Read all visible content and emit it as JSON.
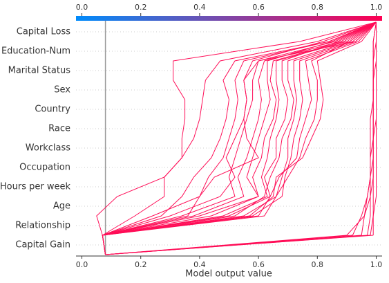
{
  "chart_data": {
    "type": "decision",
    "xlabel": "Model output value",
    "categories": [
      "Capital Loss",
      "Education-Num",
      "Marital Status",
      "Sex",
      "Country",
      "Race",
      "Workclass",
      "Occupation",
      "Hours per week",
      "Age",
      "Relationship",
      "Capital Gain"
    ],
    "base_value": 0.08,
    "xlim": [
      -0.02,
      1.02
    ],
    "xticks": [
      {
        "value": 0,
        "label": "0.0"
      },
      0.2,
      0.4,
      0.6,
      0.8,
      {
        "value": 1,
        "label": "1.0"
      }
    ],
    "line_color": "#ff0d57",
    "colorbar_colors": [
      "#008bfb",
      "#ff0052"
    ],
    "series": [
      {
        "values": [
          1.0,
          0.74,
          0.31,
          0.31,
          0.35,
          0.35,
          0.34,
          0.34,
          0.28,
          0.12,
          0.05,
          0.07
        ]
      },
      {
        "values": [
          1.0,
          0.8,
          0.47,
          0.42,
          0.41,
          0.4,
          0.38,
          0.34,
          0.28,
          0.28,
          0.18,
          0.07
        ]
      },
      {
        "values": [
          1.0,
          0.84,
          0.55,
          0.52,
          0.53,
          0.52,
          0.5,
          0.48,
          0.43,
          0.4,
          0.24,
          0.07
        ]
      },
      {
        "values": [
          1.0,
          0.82,
          0.58,
          0.55,
          0.56,
          0.55,
          0.52,
          0.49,
          0.52,
          0.47,
          0.3,
          0.07
        ]
      },
      {
        "values": [
          1.0,
          0.86,
          0.6,
          0.58,
          0.58,
          0.56,
          0.54,
          0.52,
          0.5,
          0.52,
          0.34,
          0.07
        ]
      },
      {
        "values": [
          1.0,
          0.88,
          0.62,
          0.6,
          0.61,
          0.6,
          0.58,
          0.56,
          0.53,
          0.55,
          0.38,
          0.07
        ]
      },
      {
        "values": [
          1.0,
          0.85,
          0.63,
          0.63,
          0.64,
          0.62,
          0.6,
          0.58,
          0.56,
          0.6,
          0.4,
          0.07
        ]
      },
      {
        "values": [
          1.0,
          0.89,
          0.65,
          0.64,
          0.66,
          0.65,
          0.62,
          0.61,
          0.58,
          0.6,
          0.44,
          0.07
        ]
      },
      {
        "values": [
          1.0,
          0.9,
          0.66,
          0.66,
          0.67,
          0.66,
          0.64,
          0.63,
          0.61,
          0.63,
          0.48,
          0.07
        ]
      },
      {
        "values": [
          1.0,
          0.87,
          0.68,
          0.68,
          0.7,
          0.69,
          0.66,
          0.66,
          0.62,
          0.64,
          0.5,
          0.07
        ]
      },
      {
        "values": [
          1.0,
          0.91,
          0.7,
          0.7,
          0.72,
          0.71,
          0.68,
          0.67,
          0.64,
          0.62,
          0.52,
          0.07
        ]
      },
      {
        "values": [
          1.0,
          0.92,
          0.72,
          0.72,
          0.73,
          0.72,
          0.7,
          0.7,
          0.68,
          0.66,
          0.55,
          0.07
        ]
      },
      {
        "values": [
          1.0,
          0.93,
          0.74,
          0.74,
          0.75,
          0.74,
          0.72,
          0.71,
          0.69,
          0.68,
          0.58,
          0.07
        ]
      },
      {
        "values": [
          1.0,
          0.94,
          0.76,
          0.77,
          0.78,
          0.76,
          0.74,
          0.73,
          0.67,
          0.64,
          0.6,
          0.07
        ]
      },
      {
        "values": [
          1.0,
          0.91,
          0.78,
          0.8,
          0.8,
          0.79,
          0.76,
          0.74,
          0.7,
          0.66,
          0.62,
          0.07
        ]
      },
      {
        "values": [
          1.0,
          0.95,
          0.8,
          0.81,
          0.82,
          0.81,
          0.78,
          0.75,
          0.66,
          0.65,
          0.57,
          0.07
        ]
      },
      {
        "values": [
          1.0,
          0.93,
          0.6,
          0.55,
          0.56,
          0.55,
          0.56,
          0.6,
          0.45,
          0.4,
          0.36,
          0.07
        ]
      },
      {
        "values": [
          1.0,
          0.84,
          0.52,
          0.48,
          0.5,
          0.49,
          0.47,
          0.44,
          0.38,
          0.34,
          0.27,
          0.07
        ]
      },
      {
        "values": [
          1.0,
          0.99,
          0.99,
          0.99,
          0.99,
          0.99,
          0.99,
          0.99,
          0.99,
          0.99,
          0.99,
          0.99
        ]
      },
      {
        "values": [
          1.0,
          1.0,
          1.0,
          0.99,
          0.99,
          0.99,
          0.99,
          0.99,
          0.98,
          0.98,
          0.98,
          0.97
        ]
      },
      {
        "values": [
          1.0,
          1.0,
          0.99,
          0.99,
          0.99,
          0.99,
          0.99,
          0.98,
          0.98,
          0.97,
          0.96,
          0.95
        ]
      },
      {
        "values": [
          1.0,
          0.99,
          0.99,
          0.99,
          0.99,
          0.98,
          0.98,
          0.98,
          0.98,
          0.97,
          0.95,
          0.92
        ]
      },
      {
        "values": [
          1.0,
          1.0,
          1.0,
          1.0,
          1.0,
          1.0,
          0.99,
          0.99,
          0.99,
          0.98,
          0.96,
          0.9
        ]
      },
      {
        "values": [
          1.0,
          1.0,
          1.0,
          1.0,
          1.0,
          1.0,
          1.0,
          1.0,
          1.0,
          1.0,
          0.99,
          0.98
        ]
      }
    ]
  }
}
